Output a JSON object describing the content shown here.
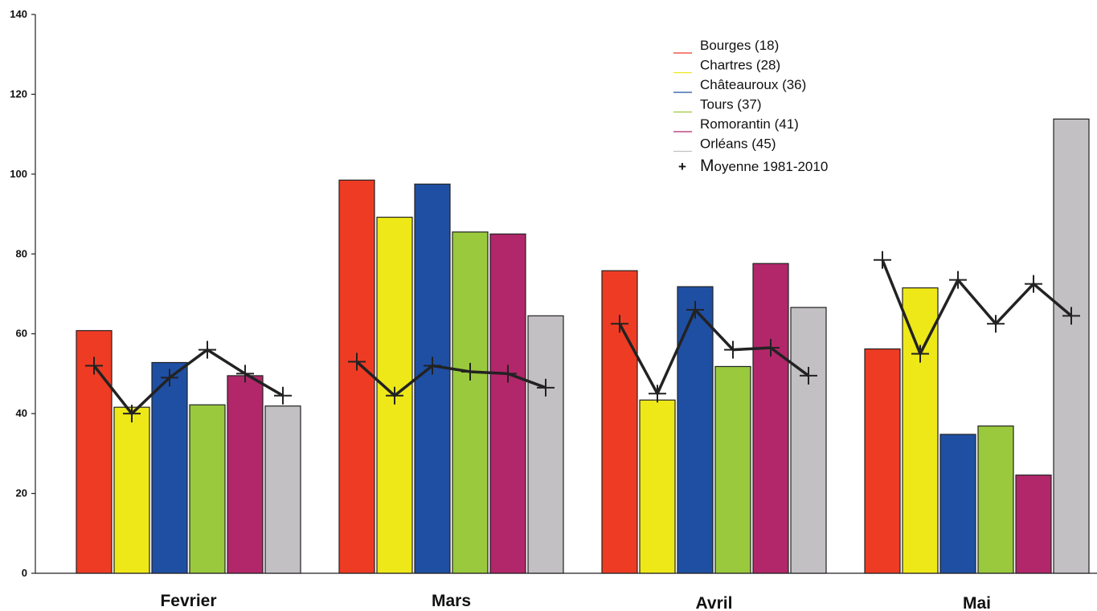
{
  "chart_data": {
    "type": "bar",
    "title": "",
    "xlabel": "",
    "ylabel": "",
    "ylim": [
      0,
      140
    ],
    "yticks": [
      "0",
      "20",
      "40",
      "60",
      "80",
      "100",
      "120",
      "140"
    ],
    "categories": [
      "Fevrier",
      "Mars",
      "Avril",
      "Mai"
    ],
    "series": [
      {
        "name": "Bourges (18)",
        "color": "#ee3b24",
        "values": [
          60.8,
          98.5,
          75.8,
          56.2
        ]
      },
      {
        "name": "Chartres (28)",
        "color": "#eee818",
        "values": [
          41.6,
          89.2,
          43.4,
          71.5
        ]
      },
      {
        "name": "Châteauroux (36)",
        "color": "#1f4fa3",
        "values": [
          52.8,
          97.5,
          71.8,
          34.8
        ]
      },
      {
        "name": "Tours (37)",
        "color": "#9ac93d",
        "values": [
          42.2,
          85.5,
          51.8,
          36.9
        ]
      },
      {
        "name": "Romorantin (41)",
        "color": "#b1276a",
        "values": [
          49.5,
          85.0,
          77.6,
          24.6
        ]
      },
      {
        "name": "Orléans  (45)",
        "color": "#c2c0c2",
        "values": [
          41.9,
          64.5,
          66.6,
          113.8
        ]
      }
    ],
    "average": {
      "marker": "+",
      "name_first_letter": "M",
      "name_rest": "oyenne 1981-2010",
      "values": [
        [
          52.0,
          40.0,
          49.0,
          56.0,
          50.0,
          44.5
        ],
        [
          53.0,
          44.5,
          52.0,
          50.5,
          50.0,
          46.5
        ],
        [
          62.5,
          45.0,
          66.0,
          56.0,
          56.5,
          49.5
        ],
        [
          78.5,
          55.0,
          73.5,
          62.5,
          72.5,
          64.5
        ]
      ]
    },
    "grid": false,
    "legend_position": "top-right"
  }
}
